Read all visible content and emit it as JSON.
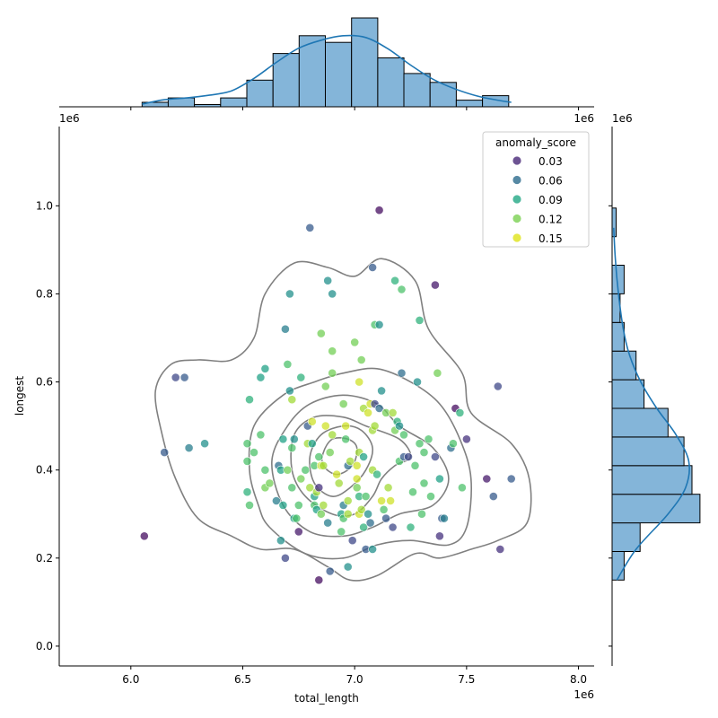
{
  "chart_data": {
    "type": "scatter",
    "xlabel": "total_length",
    "ylabel": "longest",
    "x_offset_label": "1e6",
    "y_offset_label": "1e6",
    "xlim": [
      5.68,
      8.07
    ],
    "ylim": [
      -0.045,
      1.18
    ],
    "x_ticks": [
      "6.0",
      "6.5",
      "7.0",
      "7.5",
      "8.0"
    ],
    "x_tick_values": [
      6.0,
      6.5,
      7.0,
      7.5,
      8.0
    ],
    "y_ticks": [
      "0.0",
      "0.2",
      "0.4",
      "0.6",
      "0.8",
      "1.0"
    ],
    "y_tick_values": [
      0.0,
      0.2,
      0.4,
      0.6,
      0.8,
      1.0
    ],
    "legend": {
      "title": "anomaly_score",
      "placement": "top-right",
      "entries": [
        {
          "label": "0.03",
          "color": "#482878"
        },
        {
          "label": "0.06",
          "color": "#2c6c8d"
        },
        {
          "label": "0.09",
          "color": "#22a884"
        },
        {
          "label": "0.12",
          "color": "#7ad151"
        },
        {
          "label": "0.15",
          "color": "#dfe318"
        }
      ]
    },
    "colormap": [
      "#440154",
      "#482878",
      "#3e4a89",
      "#31688e",
      "#26828e",
      "#1f9e89",
      "#35b779",
      "#6ece58",
      "#b5de2b",
      "#fde725"
    ],
    "score_range": [
      0.02,
      0.16
    ],
    "kde_contours": [
      [
        [
          6.73,
          0.22
        ],
        [
          6.88,
          0.18
        ],
        [
          6.98,
          0.15
        ],
        [
          7.1,
          0.16
        ],
        [
          7.27,
          0.21
        ],
        [
          7.38,
          0.2
        ],
        [
          7.52,
          0.22
        ],
        [
          7.64,
          0.24
        ],
        [
          7.77,
          0.28
        ],
        [
          7.78,
          0.38
        ],
        [
          7.7,
          0.46
        ],
        [
          7.52,
          0.53
        ],
        [
          7.48,
          0.62
        ],
        [
          7.33,
          0.72
        ],
        [
          7.27,
          0.83
        ],
        [
          7.12,
          0.88
        ],
        [
          7.0,
          0.84
        ],
        [
          6.88,
          0.86
        ],
        [
          6.73,
          0.87
        ],
        [
          6.6,
          0.8
        ],
        [
          6.55,
          0.7
        ],
        [
          6.45,
          0.65
        ],
        [
          6.3,
          0.65
        ],
        [
          6.18,
          0.64
        ],
        [
          6.11,
          0.58
        ],
        [
          6.14,
          0.48
        ],
        [
          6.2,
          0.38
        ],
        [
          6.3,
          0.29
        ],
        [
          6.45,
          0.25
        ],
        [
          6.58,
          0.22
        ]
      ],
      [
        [
          6.62,
          0.27
        ],
        [
          6.78,
          0.21
        ],
        [
          6.95,
          0.2
        ],
        [
          7.1,
          0.23
        ],
        [
          7.25,
          0.24
        ],
        [
          7.42,
          0.23
        ],
        [
          7.5,
          0.27
        ],
        [
          7.52,
          0.38
        ],
        [
          7.47,
          0.47
        ],
        [
          7.38,
          0.55
        ],
        [
          7.25,
          0.6
        ],
        [
          7.1,
          0.63
        ],
        [
          6.95,
          0.62
        ],
        [
          6.82,
          0.6
        ],
        [
          6.68,
          0.57
        ],
        [
          6.55,
          0.5
        ],
        [
          6.53,
          0.4
        ],
        [
          6.57,
          0.32
        ]
      ],
      [
        [
          6.68,
          0.32
        ],
        [
          6.8,
          0.26
        ],
        [
          6.95,
          0.25
        ],
        [
          7.08,
          0.27
        ],
        [
          7.2,
          0.3
        ],
        [
          7.35,
          0.32
        ],
        [
          7.42,
          0.38
        ],
        [
          7.35,
          0.45
        ],
        [
          7.2,
          0.5
        ],
        [
          7.1,
          0.55
        ],
        [
          6.95,
          0.57
        ],
        [
          6.8,
          0.55
        ],
        [
          6.7,
          0.5
        ],
        [
          6.63,
          0.42
        ]
      ],
      [
        [
          6.78,
          0.34
        ],
        [
          6.9,
          0.3
        ],
        [
          7.0,
          0.3
        ],
        [
          7.08,
          0.34
        ],
        [
          7.12,
          0.38
        ],
        [
          7.18,
          0.41
        ],
        [
          7.25,
          0.43
        ],
        [
          7.2,
          0.47
        ],
        [
          7.05,
          0.5
        ],
        [
          6.95,
          0.52
        ],
        [
          6.82,
          0.52
        ],
        [
          6.73,
          0.48
        ],
        [
          6.72,
          0.4
        ]
      ],
      [
        [
          6.82,
          0.37
        ],
        [
          6.9,
          0.34
        ],
        [
          6.98,
          0.36
        ],
        [
          7.05,
          0.4
        ],
        [
          7.08,
          0.45
        ],
        [
          7.03,
          0.49
        ],
        [
          6.95,
          0.5
        ],
        [
          6.85,
          0.48
        ],
        [
          6.8,
          0.43
        ]
      ],
      [
        [
          6.86,
          0.41
        ],
        [
          6.92,
          0.39
        ],
        [
          6.99,
          0.41
        ],
        [
          7.01,
          0.45
        ],
        [
          6.97,
          0.47
        ],
        [
          6.9,
          0.47
        ],
        [
          6.86,
          0.44
        ]
      ]
    ],
    "x_marginal_hist": {
      "bin_edges": [
        6.05,
        6.167,
        6.284,
        6.401,
        6.518,
        6.635,
        6.752,
        6.869,
        6.986,
        7.103,
        7.22,
        7.337,
        7.454,
        7.571,
        7.688,
        7.805
      ],
      "counts": [
        0.5,
        1,
        0.25,
        1,
        3,
        6,
        8,
        7.25,
        10,
        5.5,
        3.75,
        2.75,
        0.75,
        1.25,
        0
      ],
      "kde": [
        [
          6.05,
          0.3
        ],
        [
          6.15,
          0.8
        ],
        [
          6.25,
          1.0
        ],
        [
          6.35,
          1.3
        ],
        [
          6.45,
          1.8
        ],
        [
          6.55,
          3.2
        ],
        [
          6.65,
          5.0
        ],
        [
          6.75,
          6.6
        ],
        [
          6.85,
          7.5
        ],
        [
          6.95,
          8.0
        ],
        [
          7.05,
          7.8
        ],
        [
          7.15,
          6.5
        ],
        [
          7.25,
          4.7
        ],
        [
          7.35,
          3.1
        ],
        [
          7.45,
          2.0
        ],
        [
          7.55,
          1.2
        ],
        [
          7.65,
          0.7
        ],
        [
          7.7,
          0.5
        ]
      ]
    },
    "y_marginal_hist": {
      "bin_edges": [
        0.15,
        0.215,
        0.28,
        0.345,
        0.41,
        0.475,
        0.54,
        0.605,
        0.67,
        0.735,
        0.8,
        0.865,
        0.93,
        0.995
      ],
      "counts": [
        0.75,
        1.75,
        5.5,
        5,
        4.5,
        3.5,
        2,
        1.5,
        0.75,
        0.5,
        0.75,
        0,
        0.25
      ],
      "kde": [
        [
          0.15,
          0.3
        ],
        [
          0.22,
          1.5
        ],
        [
          0.3,
          3.5
        ],
        [
          0.36,
          4.6
        ],
        [
          0.42,
          4.8
        ],
        [
          0.48,
          4.0
        ],
        [
          0.54,
          2.8
        ],
        [
          0.6,
          1.8
        ],
        [
          0.66,
          1.1
        ],
        [
          0.72,
          0.7
        ],
        [
          0.8,
          0.4
        ],
        [
          0.88,
          0.2
        ],
        [
          0.95,
          0.1
        ]
      ]
    },
    "points": [
      [
        6.06,
        0.25,
        0.025
      ],
      [
        6.15,
        0.44,
        0.06
      ],
      [
        6.2,
        0.61,
        0.05
      ],
      [
        6.24,
        0.61,
        0.06
      ],
      [
        6.26,
        0.45,
        0.08
      ],
      [
        6.33,
        0.46,
        0.09
      ],
      [
        6.52,
        0.46,
        0.12
      ],
      [
        6.52,
        0.42,
        0.12
      ],
      [
        6.52,
        0.35,
        0.11
      ],
      [
        6.53,
        0.32,
        0.12
      ],
      [
        6.53,
        0.56,
        0.11
      ],
      [
        6.55,
        0.44,
        0.12
      ],
      [
        6.58,
        0.61,
        0.1
      ],
      [
        6.58,
        0.48,
        0.12
      ],
      [
        6.6,
        0.4,
        0.12
      ],
      [
        6.6,
        0.63,
        0.1
      ],
      [
        6.6,
        0.36,
        0.13
      ],
      [
        6.62,
        0.37,
        0.13
      ],
      [
        6.65,
        0.33,
        0.08
      ],
      [
        6.66,
        0.41,
        0.07
      ],
      [
        6.67,
        0.4,
        0.1
      ],
      [
        6.68,
        0.32,
        0.1
      ],
      [
        6.68,
        0.47,
        0.1
      ],
      [
        6.67,
        0.24,
        0.09
      ],
      [
        6.69,
        0.2,
        0.05
      ],
      [
        6.69,
        0.72,
        0.08
      ],
      [
        6.7,
        0.64,
        0.12
      ],
      [
        6.7,
        0.4,
        0.13
      ],
      [
        6.71,
        0.58,
        0.09
      ],
      [
        6.71,
        0.8,
        0.09
      ],
      [
        6.72,
        0.36,
        0.12
      ],
      [
        6.72,
        0.45,
        0.12
      ],
      [
        6.72,
        0.56,
        0.14
      ],
      [
        6.73,
        0.29,
        0.1
      ],
      [
        6.73,
        0.47,
        0.09
      ],
      [
        6.74,
        0.29,
        0.12
      ],
      [
        6.75,
        0.32,
        0.12
      ],
      [
        6.75,
        0.26,
        0.03
      ],
      [
        6.76,
        0.38,
        0.13
      ],
      [
        6.76,
        0.61,
        0.11
      ],
      [
        6.78,
        0.4,
        0.12
      ],
      [
        6.79,
        0.5,
        0.06
      ],
      [
        6.79,
        0.46,
        0.14
      ],
      [
        6.8,
        0.95,
        0.06
      ],
      [
        6.8,
        0.36,
        0.14
      ],
      [
        6.81,
        0.51,
        0.15
      ],
      [
        6.81,
        0.46,
        0.1
      ],
      [
        6.82,
        0.41,
        0.12
      ],
      [
        6.82,
        0.34,
        0.1
      ],
      [
        6.82,
        0.32,
        0.12
      ],
      [
        6.83,
        0.31,
        0.1
      ],
      [
        6.83,
        0.35,
        0.14
      ],
      [
        6.84,
        0.15,
        0.025
      ],
      [
        6.84,
        0.36,
        0.04
      ],
      [
        6.84,
        0.43,
        0.12
      ],
      [
        6.85,
        0.41,
        0.15
      ],
      [
        6.85,
        0.71,
        0.13
      ],
      [
        6.85,
        0.3,
        0.13
      ],
      [
        6.86,
        0.32,
        0.14
      ],
      [
        6.86,
        0.41,
        0.14
      ],
      [
        6.87,
        0.5,
        0.15
      ],
      [
        6.87,
        0.59,
        0.13
      ],
      [
        6.88,
        0.28,
        0.08
      ],
      [
        6.88,
        0.83,
        0.09
      ],
      [
        6.89,
        0.17,
        0.06
      ],
      [
        6.89,
        0.44,
        0.13
      ],
      [
        6.9,
        0.8,
        0.09
      ],
      [
        6.9,
        0.62,
        0.13
      ],
      [
        6.9,
        0.48,
        0.14
      ],
      [
        6.9,
        0.67,
        0.13
      ],
      [
        6.92,
        0.39,
        0.15
      ],
      [
        6.93,
        0.37,
        0.14
      ],
      [
        6.94,
        0.3,
        0.1
      ],
      [
        6.94,
        0.26,
        0.12
      ],
      [
        6.95,
        0.55,
        0.13
      ],
      [
        6.95,
        0.29,
        0.12
      ],
      [
        6.95,
        0.32,
        0.08
      ],
      [
        6.96,
        0.47,
        0.12
      ],
      [
        6.96,
        0.5,
        0.15
      ],
      [
        6.97,
        0.33,
        0.14
      ],
      [
        6.97,
        0.41,
        0.07
      ],
      [
        6.97,
        0.18,
        0.09
      ],
      [
        6.97,
        0.3,
        0.14
      ],
      [
        6.98,
        0.42,
        0.14
      ],
      [
        6.99,
        0.24,
        0.05
      ],
      [
        7.0,
        0.69,
        0.13
      ],
      [
        7.01,
        0.41,
        0.15
      ],
      [
        7.01,
        0.38,
        0.15
      ],
      [
        7.01,
        0.36,
        0.13
      ],
      [
        7.02,
        0.44,
        0.14
      ],
      [
        7.02,
        0.6,
        0.15
      ],
      [
        7.02,
        0.34,
        0.11
      ],
      [
        7.02,
        0.3,
        0.15
      ],
      [
        7.03,
        0.31,
        0.14
      ],
      [
        7.03,
        0.65,
        0.13
      ],
      [
        7.04,
        0.54,
        0.14
      ],
      [
        7.04,
        0.43,
        0.1
      ],
      [
        7.04,
        0.27,
        0.11
      ],
      [
        7.05,
        0.22,
        0.06
      ],
      [
        7.05,
        0.34,
        0.12
      ],
      [
        7.06,
        0.53,
        0.15
      ],
      [
        7.06,
        0.3,
        0.09
      ],
      [
        7.07,
        0.55,
        0.15
      ],
      [
        7.07,
        0.28,
        0.07
      ],
      [
        7.08,
        0.22,
        0.09
      ],
      [
        7.08,
        0.49,
        0.14
      ],
      [
        7.08,
        0.4,
        0.14
      ],
      [
        7.08,
        0.86,
        0.06
      ],
      [
        7.09,
        0.73,
        0.12
      ],
      [
        7.09,
        0.55,
        0.05
      ],
      [
        7.09,
        0.5,
        0.14
      ],
      [
        7.1,
        0.39,
        0.11
      ],
      [
        7.11,
        0.73,
        0.09
      ],
      [
        7.11,
        0.99,
        0.025
      ],
      [
        7.11,
        0.54,
        0.07
      ],
      [
        7.12,
        0.58,
        0.09
      ],
      [
        7.12,
        0.33,
        0.15
      ],
      [
        7.13,
        0.31,
        0.12
      ],
      [
        7.14,
        0.53,
        0.13
      ],
      [
        7.14,
        0.29,
        0.06
      ],
      [
        7.15,
        0.36,
        0.14
      ],
      [
        7.16,
        0.33,
        0.15
      ],
      [
        7.17,
        0.27,
        0.05
      ],
      [
        7.17,
        0.53,
        0.14
      ],
      [
        7.18,
        0.83,
        0.11
      ],
      [
        7.18,
        0.49,
        0.13
      ],
      [
        7.19,
        0.51,
        0.11
      ],
      [
        7.2,
        0.42,
        0.12
      ],
      [
        7.2,
        0.5,
        0.09
      ],
      [
        7.21,
        0.62,
        0.07
      ],
      [
        7.21,
        0.81,
        0.12
      ],
      [
        7.22,
        0.48,
        0.12
      ],
      [
        7.22,
        0.43,
        0.06
      ],
      [
        7.24,
        0.43,
        0.05
      ],
      [
        7.25,
        0.27,
        0.11
      ],
      [
        7.26,
        0.35,
        0.12
      ],
      [
        7.27,
        0.41,
        0.12
      ],
      [
        7.28,
        0.6,
        0.09
      ],
      [
        7.29,
        0.46,
        0.12
      ],
      [
        7.29,
        0.74,
        0.11
      ],
      [
        7.3,
        0.3,
        0.12
      ],
      [
        7.31,
        0.37,
        0.12
      ],
      [
        7.31,
        0.44,
        0.12
      ],
      [
        7.33,
        0.47,
        0.12
      ],
      [
        7.34,
        0.34,
        0.12
      ],
      [
        7.36,
        0.43,
        0.05
      ],
      [
        7.36,
        0.82,
        0.03
      ],
      [
        7.37,
        0.62,
        0.13
      ],
      [
        7.38,
        0.25,
        0.04
      ],
      [
        7.38,
        0.38,
        0.1
      ],
      [
        7.39,
        0.29,
        0.06
      ],
      [
        7.4,
        0.29,
        0.08
      ],
      [
        7.43,
        0.45,
        0.07
      ],
      [
        7.44,
        0.46,
        0.12
      ],
      [
        7.45,
        0.54,
        0.025
      ],
      [
        7.47,
        0.53,
        0.11
      ],
      [
        7.48,
        0.36,
        0.12
      ],
      [
        7.5,
        0.47,
        0.04
      ],
      [
        7.59,
        0.38,
        0.03
      ],
      [
        7.62,
        0.34,
        0.06
      ],
      [
        7.64,
        0.59,
        0.05
      ],
      [
        7.65,
        0.22,
        0.04
      ],
      [
        7.7,
        0.38,
        0.06
      ]
    ]
  }
}
